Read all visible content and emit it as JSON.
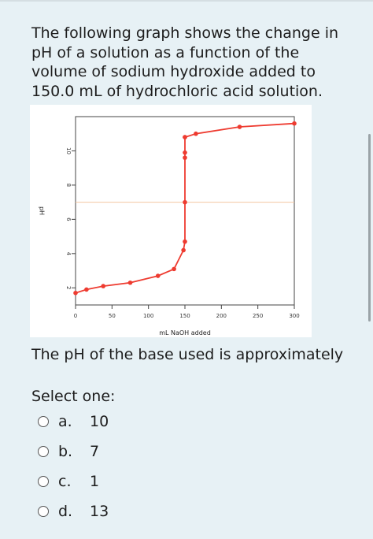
{
  "question": {
    "text": "The following graph shows the change in pH of a solution as a function of the volume of sodium hydroxide added to 150.0 mL of hydrochloric acid solution."
  },
  "prompt": "The pH of the base used is approximately",
  "select_label": "Select one:",
  "options": [
    {
      "letter": "a.",
      "value": "10"
    },
    {
      "letter": "b.",
      "value": "7"
    },
    {
      "letter": "c.",
      "value": "1"
    },
    {
      "letter": "d.",
      "value": "13"
    }
  ],
  "colors": {
    "curve": "#ee3b30",
    "reference_line": "#f2c7a3",
    "background": "#e7f1f5"
  },
  "chart_data": {
    "type": "line",
    "xlabel": "mL NaOH added",
    "ylabel": "pH",
    "xlim": [
      0,
      300
    ],
    "ylim": [
      1,
      12
    ],
    "x_ticks": [
      0,
      50,
      100,
      150,
      200,
      250,
      300
    ],
    "y_ticks": [
      2,
      4,
      6,
      8,
      10
    ],
    "reference_line_y": 7,
    "grid": false,
    "series": [
      {
        "x": [
          0,
          15,
          38,
          75,
          113,
          135,
          148,
          150,
          150,
          150,
          150,
          150,
          150,
          165,
          225,
          300
        ],
        "y": [
          1.7,
          1.9,
          2.1,
          2.3,
          2.7,
          3.1,
          4.2,
          4.7,
          7.0,
          9.6,
          9.9,
          10.8,
          10.8,
          11.0,
          11.4,
          11.6
        ]
      }
    ]
  }
}
